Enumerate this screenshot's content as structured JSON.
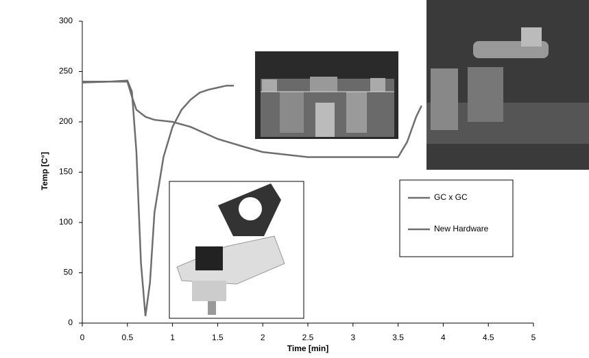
{
  "chart_data": {
    "type": "line",
    "xlabel": "Time [min]",
    "ylabel": "Temp [C°]",
    "xlim": [
      0,
      5
    ],
    "xticks": [
      0,
      0.5,
      1,
      1.5,
      2,
      2.5,
      3,
      3.5,
      4,
      4.5,
      5
    ],
    "ylim": [
      0,
      300
    ],
    "yticks": [
      0,
      50,
      100,
      150,
      200,
      250,
      300
    ],
    "grid": false,
    "legend": "right",
    "series": [
      {
        "name": "GC x GC",
        "color": "#6e6e6e",
        "x": [
          0,
          0.3,
          0.5,
          0.55,
          0.6,
          0.65,
          0.7,
          0.75,
          0.8,
          0.9,
          1.0,
          1.1,
          1.2,
          1.3,
          1.4,
          1.5,
          1.6,
          1.68
        ],
        "values": [
          240,
          240,
          241,
          230,
          170,
          60,
          7,
          40,
          110,
          165,
          195,
          212,
          222,
          229,
          232,
          234,
          236,
          236
        ]
      },
      {
        "name": "New Hardware",
        "color": "#6e6e6e",
        "x": [
          0,
          0.3,
          0.5,
          0.55,
          0.6,
          0.7,
          0.8,
          1.0,
          1.2,
          1.5,
          1.8,
          2.0,
          2.5,
          3.0,
          3.5,
          3.6,
          3.7,
          3.76
        ],
        "values": [
          239,
          240,
          240,
          225,
          212,
          205,
          202,
          200,
          195,
          183,
          175,
          170,
          165,
          165,
          165,
          180,
          205,
          216
        ]
      }
    ]
  }
}
